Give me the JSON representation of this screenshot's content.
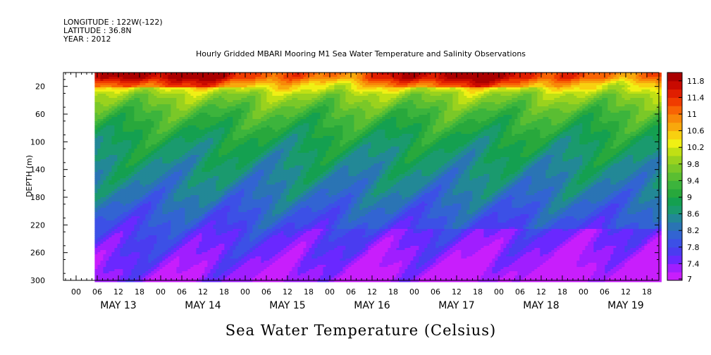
{
  "header": {
    "longitude": "LONGITUDE : 122W(-122)",
    "latitude": "LATITUDE : 36.8N",
    "year": "YEAR : 2012"
  },
  "chart_data": {
    "type": "heatmap",
    "title": "Hourly Gridded MBARI Mooring M1 Sea Water Temperature and Salinity Observations",
    "xlabel": "",
    "ylabel": "DEPTH (m)",
    "colorbar_label": "Sea Water Temperature (Celsius)",
    "y_reversed": true,
    "ylim": [
      0,
      300
    ],
    "y_ticks": [
      20,
      60,
      100,
      140,
      180,
      220,
      260,
      300
    ],
    "x_hour_ticks": [
      "00",
      "06",
      "12",
      "18",
      "00",
      "06",
      "12",
      "18",
      "00",
      "06",
      "12",
      "18",
      "00",
      "06",
      "12",
      "18",
      "00",
      "06",
      "12",
      "18",
      "00",
      "06",
      "12",
      "18",
      "00",
      "06",
      "12",
      "18",
      "00",
      "06",
      "12",
      "18"
    ],
    "x_day_labels": [
      "MAY 13",
      "MAY 14",
      "MAY 15",
      "MAY 16",
      "MAY 17",
      "MAY 18",
      "MAY 19"
    ],
    "data_start_hour": 6,
    "data_end_hour": 180,
    "levels": [
      7,
      7.2,
      7.4,
      7.6,
      7.8,
      8,
      8.2,
      8.4,
      8.6,
      8.8,
      9,
      9.2,
      9.4,
      9.6,
      9.8,
      10,
      10.2,
      10.4,
      10.6,
      10.8,
      11,
      11.2,
      11.4,
      11.6,
      11.8,
      12
    ],
    "colorbar_labels": [
      "11.8",
      "11.4",
      "11",
      "10.6",
      "10.2",
      "9.8",
      "9.4",
      "9",
      "8.6",
      "8.2",
      "7.8",
      "7.4",
      "7"
    ],
    "colors": [
      "#c81efc",
      "#a01eff",
      "#6a28ff",
      "#4a3cf0",
      "#3c50e6",
      "#3264d2",
      "#2a74b4",
      "#228896",
      "#1a9a6e",
      "#14a050",
      "#28a83c",
      "#3cb43c",
      "#5abe32",
      "#7ac828",
      "#9ad21e",
      "#c0e014",
      "#f0f014",
      "#f8d010",
      "#f8a80c",
      "#f88808",
      "#f86404",
      "#f03c00",
      "#e01e00",
      "#c80a00",
      "#aa0000"
    ],
    "profile": [
      {
        "depth": 10,
        "temp": 11.2
      },
      {
        "depth": 20,
        "temp": 10.6
      },
      {
        "depth": 35,
        "temp": 9.9
      },
      {
        "depth": 60,
        "temp": 9.4
      },
      {
        "depth": 100,
        "temp": 8.9
      },
      {
        "depth": 140,
        "temp": 8.6
      },
      {
        "depth": 180,
        "temp": 8.3
      },
      {
        "depth": 220,
        "temp": 7.9
      },
      {
        "depth": 260,
        "temp": 7.6
      },
      {
        "depth": 300,
        "temp": 7.3
      }
    ]
  }
}
